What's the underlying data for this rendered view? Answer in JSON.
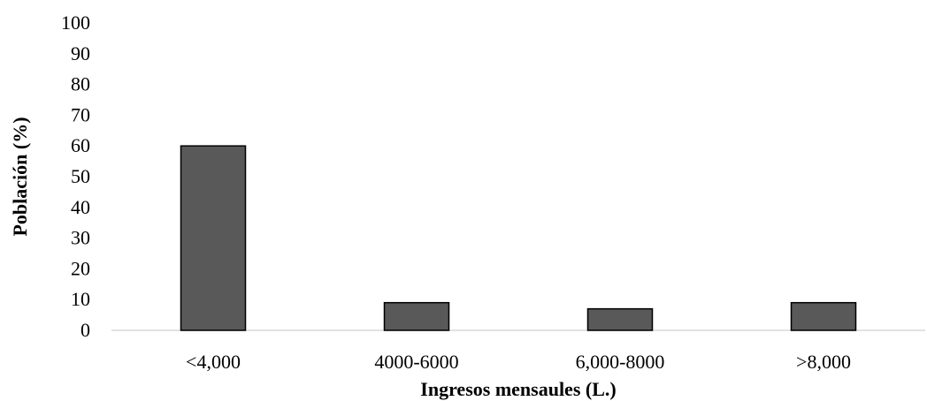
{
  "chart_data": {
    "type": "bar",
    "categories": [
      "<4,000",
      "4000-6000",
      "6,000-8000",
      ">8,000"
    ],
    "values": [
      60,
      9,
      7,
      9
    ],
    "title": "",
    "xlabel": "Ingresos mensaules (L.)",
    "ylabel": "Población (%)",
    "ylim": [
      0,
      100
    ],
    "yticks": [
      0,
      10,
      20,
      30,
      40,
      50,
      60,
      70,
      80,
      90,
      100
    ],
    "grid": false,
    "colors": {
      "bar_fill": "#595959",
      "bar_stroke": "#000000",
      "axis": "#d9d9d9"
    }
  }
}
